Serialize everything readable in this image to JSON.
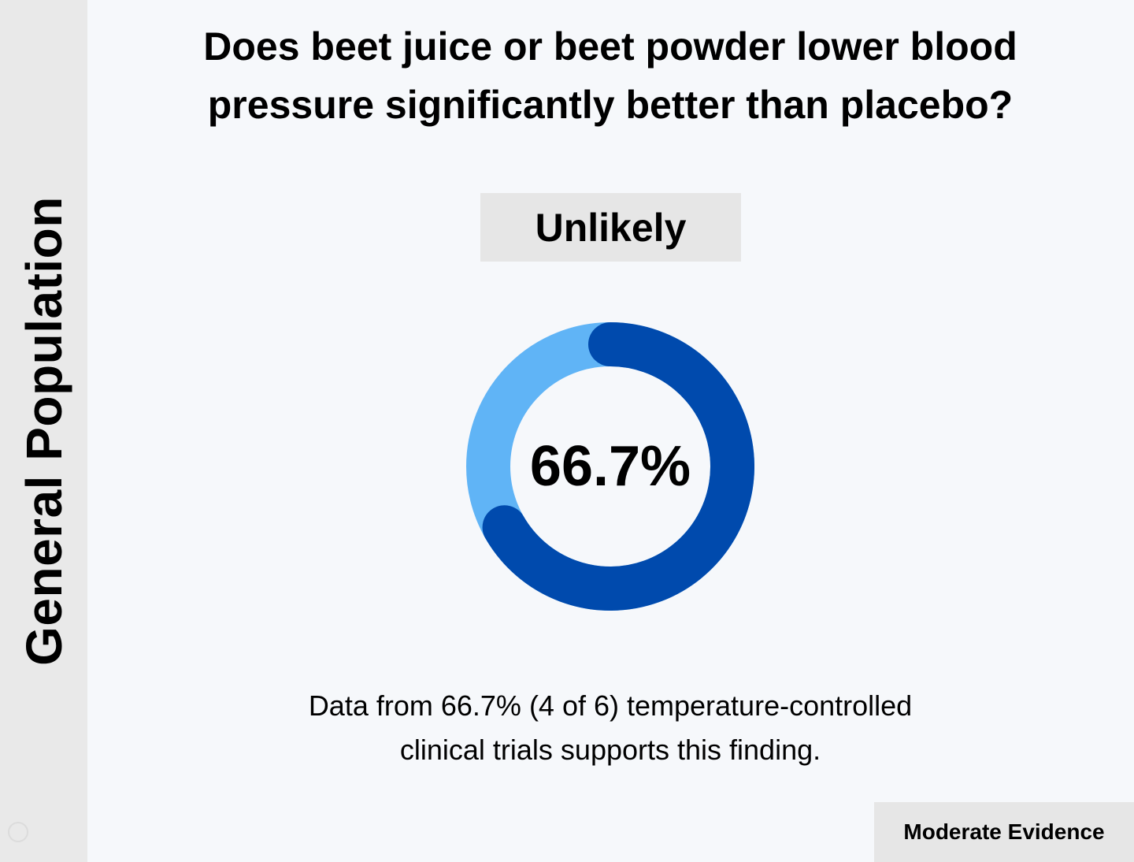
{
  "sidebar": {
    "label": "General Population"
  },
  "question": "Does beet juice or beet powder lower blood pressure significantly better than placebo?",
  "verdict": "Unlikely",
  "caption": "Data from 66.7% (4 of 6) temperature-controlled clinical trials supports this finding.",
  "evidence_level": "Moderate Evidence",
  "colors": {
    "primary": "#004aad",
    "secondary": "#60b4f6",
    "background": "#f6f8fb",
    "panel": "#e9e9e9"
  },
  "chart_data": {
    "type": "pie",
    "style": "donut",
    "center_label": "66.7%",
    "values": [
      66.7,
      33.3
    ],
    "colors": [
      "#004aad",
      "#60b4f6"
    ],
    "supporting_trials": 4,
    "total_trials": 6
  }
}
